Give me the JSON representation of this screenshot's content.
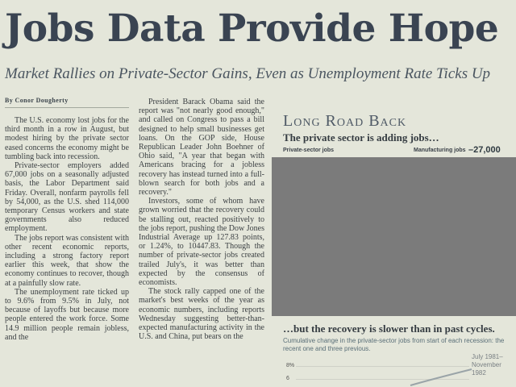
{
  "article": {
    "headline": "Jobs Data Provide Hope",
    "deck": "Market Rallies on Private-Sector Gains, Even as Unemployment Rate Ticks Up",
    "byline": "By Conor Dougherty",
    "col1": [
      "The U.S. economy lost jobs for the third month in a row in August, but modest hiring by the private sector eased concerns the economy might be tumbling back into recession.",
      "Private-sector employers added 67,000 jobs on a seasonally adjusted basis, the Labor Department said Friday. Overall, nonfarm payrolls fell by 54,000, as the U.S. shed 114,000 temporary Census workers and state governments also reduced employment.",
      "The jobs report was consistent with other recent economic reports, including a strong factory report earlier this week, that show the economy continues to recover, though at a painfully slow rate.",
      "The unemployment rate ticked up to 9.6% from 9.5% in July, not because of layoffs but because more people entered the work force. Some 14.9 million people remain jobless, and the"
    ],
    "col2": [
      "President Barack Obama said the report was \"not nearly good enough,\" and called on Congress to pass a bill designed to help small businesses get loans. On the GOP side, House Republican Leader John Boehner of Ohio said, \"A year that began with Americans bracing for a jobless recovery has instead turned into a full-blown search for both jobs and a recovery.\"",
      "Investors, some of whom have grown worried that the recovery could be stalling out, reacted positively to the jobs report, pushing the Dow Jones Industrial Average up 127.83 points, or 1.24%, to 10447.83. Though the number of private-sector jobs created trailed July's, it was better than expected by the consensus of economists.",
      "The stock rally capped one of the market's best weeks of the year as economic numbers, including reports Wednesday suggesting better-than-expected manufacturing activity in the U.S. and China, put bears on the"
    ]
  },
  "graphic": {
    "title": "Long Road Back",
    "subtitle": "The private sector is adding jobs…",
    "legend_private": "Private-sector jobs",
    "legend_manufacturing": "Manufacturing jobs",
    "manufacturing_value": "–27,000",
    "subtitle2": "…but the recovery is slower than in past cycles.",
    "note": "Cumulative change in the private-sector jobs from start of each recession: the recent one and three previous.",
    "annotation": "July 1981–November 1982",
    "tick_8": "8%",
    "tick_6": "6"
  }
}
